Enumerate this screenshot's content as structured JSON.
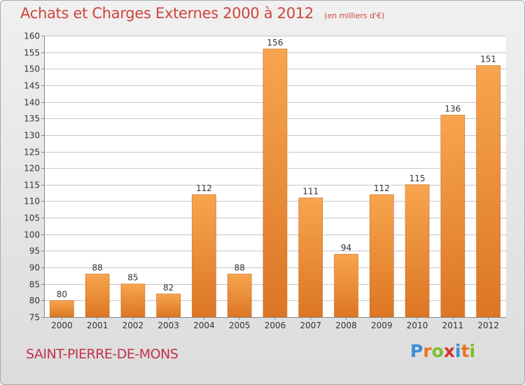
{
  "title": "Achats et Charges Externes 2000 à 2012",
  "subtitle": "(en milliers d'€)",
  "commune": "SAINT-PIERRE-DE-MONS",
  "logo": {
    "letters": [
      "P",
      "r",
      "o",
      "x",
      "i",
      "t",
      "i"
    ],
    "colors": [
      "#3a8fd8",
      "#e7781e",
      "#7cbd2e",
      "#d6342a",
      "#3a8fd8",
      "#e7781e",
      "#7cbd2e"
    ]
  },
  "colors": {
    "title": "#d0443b",
    "bar_light": "#f7a54e",
    "bar_dark": "#dc7624",
    "grid": "#c8c8c8"
  },
  "chart_data": {
    "type": "bar",
    "title": "Achats et Charges Externes 2000 à 2012",
    "subtitle": "(en milliers d'€)",
    "categories": [
      "2000",
      "2001",
      "2002",
      "2003",
      "2004",
      "2005",
      "2006",
      "2007",
      "2008",
      "2009",
      "2010",
      "2011",
      "2012"
    ],
    "values": [
      80,
      88,
      85,
      82,
      112,
      88,
      156,
      111,
      94,
      112,
      115,
      136,
      151
    ],
    "ylim": [
      75,
      160
    ],
    "yticks": [
      75,
      80,
      85,
      90,
      95,
      100,
      105,
      110,
      115,
      120,
      125,
      130,
      135,
      140,
      145,
      150,
      155,
      160
    ],
    "grid": true,
    "data_labels": true
  }
}
